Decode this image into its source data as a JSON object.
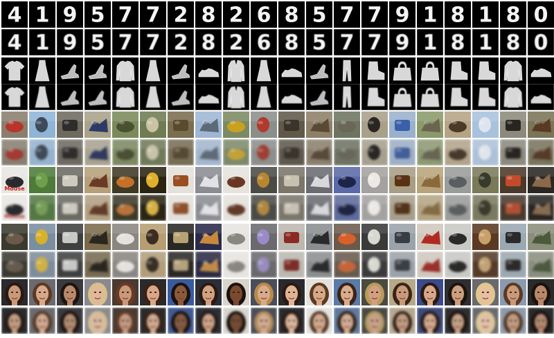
{
  "figure": {
    "title": "",
    "background_color": "#ffffff",
    "columns": 20,
    "row_kinds": [
      "original",
      "reconstruction"
    ],
    "panels": [
      {
        "name": "mnist",
        "background_color": "#000000",
        "items": [
          {
            "label": "4"
          },
          {
            "label": "1"
          },
          {
            "label": "9"
          },
          {
            "label": "5"
          },
          {
            "label": "7"
          },
          {
            "label": "7"
          },
          {
            "label": "2"
          },
          {
            "label": "8"
          },
          {
            "label": "2"
          },
          {
            "label": "6"
          },
          {
            "label": "8"
          },
          {
            "label": "5"
          },
          {
            "label": "7"
          },
          {
            "label": "7"
          },
          {
            "label": "9"
          },
          {
            "label": "1"
          },
          {
            "label": "8"
          },
          {
            "label": "1"
          },
          {
            "label": "8"
          },
          {
            "label": "0"
          }
        ]
      },
      {
        "name": "fashion-mnist",
        "background_color": "#000000",
        "items": [
          {
            "icon": "tshirt-icon"
          },
          {
            "icon": "dress-icon"
          },
          {
            "icon": "sandal-icon"
          },
          {
            "icon": "sandal-icon"
          },
          {
            "icon": "pullover-icon"
          },
          {
            "icon": "dress-icon"
          },
          {
            "icon": "sandal-icon"
          },
          {
            "icon": "sneaker-icon"
          },
          {
            "icon": "coat-icon"
          },
          {
            "icon": "dress-icon"
          },
          {
            "icon": "sneaker-icon"
          },
          {
            "icon": "sandal-icon"
          },
          {
            "icon": "trouser-icon"
          },
          {
            "icon": "ankle-boot-icon"
          },
          {
            "icon": "bag-icon"
          },
          {
            "icon": "bag-icon"
          },
          {
            "icon": "ankle-boot-icon"
          },
          {
            "icon": "ankle-boot-icon"
          },
          {
            "icon": "pullover-icon"
          },
          {
            "icon": "sneaker-icon"
          }
        ]
      },
      {
        "name": "cifar-10",
        "items": [
          {
            "bg": "#8a7f6e",
            "obj": "#b8352c"
          },
          {
            "bg": "#8fb4d6",
            "obj": "#3c4a5a"
          },
          {
            "bg": "#6f6a60",
            "obj": "#2f2d2b"
          },
          {
            "bg": "#a9a28a",
            "obj": "#2e3a66"
          },
          {
            "bg": "#7c8a5a",
            "obj": "#4a5030"
          },
          {
            "bg": "#6f7b52",
            "obj": "#c9c2a4"
          },
          {
            "bg": "#7a6e4f",
            "obj": "#5a4a2e"
          },
          {
            "bg": "#9fb7d4",
            "obj": "#5c6a78"
          },
          {
            "bg": "#7b8a64",
            "obj": "#c9a11e"
          },
          {
            "bg": "#8b8f8a",
            "obj": "#b03a2e"
          },
          {
            "bg": "#60594a",
            "obj": "#3a342a"
          },
          {
            "bg": "#8e8068",
            "obj": "#5a4a34"
          },
          {
            "bg": "#6d7560",
            "obj": "#6a6658"
          },
          {
            "bg": "#a9a08a",
            "obj": "#2a2622"
          },
          {
            "bg": "#9ab1cc",
            "obj": "#3b5fa8"
          },
          {
            "bg": "#8a9a6a",
            "obj": "#6a6450"
          },
          {
            "bg": "#b5a484",
            "obj": "#4a3a28"
          },
          {
            "bg": "#a8c2de",
            "obj": "#dfe5ee"
          },
          {
            "bg": "#8c8a7c",
            "obj": "#2a2420"
          },
          {
            "bg": "#7a7458",
            "obj": "#5a3a22"
          }
        ]
      },
      {
        "name": "tiny-imagenet-a",
        "items": [
          {
            "bg": "#e8e6e2",
            "obj": "#2a2a2e",
            "caption": "Mouse"
          },
          {
            "bg": "#4e7a3a",
            "obj": "#6ea04a"
          },
          {
            "bg": "#6a6a62",
            "obj": "#cfcac0"
          },
          {
            "bg": "#b6a07a",
            "obj": "#6a3a24"
          },
          {
            "bg": "#3e3a24",
            "obj": "#c4702a"
          },
          {
            "bg": "#2a2410",
            "obj": "#e0b02a"
          },
          {
            "bg": "#e4e0da",
            "obj": "#9a4e22"
          },
          {
            "bg": "#8a8c92",
            "obj": "#e2e2e4"
          },
          {
            "bg": "#e6e2dc",
            "obj": "#6a3822"
          },
          {
            "bg": "#4a4a46",
            "obj": "#b8862e"
          },
          {
            "bg": "#7c766a",
            "obj": "#c8c0b0"
          },
          {
            "bg": "#6a6c72",
            "obj": "#d8d8dc"
          },
          {
            "bg": "#5a6aa8",
            "obj": "#1e2448"
          },
          {
            "bg": "#a4a2a0",
            "obj": "#ece8e4"
          },
          {
            "bg": "#a89e86",
            "obj": "#5a3212"
          },
          {
            "bg": "#b8a47a",
            "obj": "#8a6a3a"
          },
          {
            "bg": "#9a9c9a",
            "obj": "#5a5e60"
          },
          {
            "bg": "#7a7a5a",
            "obj": "#3a3a2a"
          },
          {
            "bg": "#4a3a2a",
            "obj": "#c44a2a"
          },
          {
            "bg": "#2a2622",
            "obj": "#8a6a4a"
          }
        ]
      },
      {
        "name": "tiny-imagenet-b",
        "items": [
          {
            "bg": "#3a3a2e",
            "obj": "#6a5a4a"
          },
          {
            "bg": "#7a8ea0",
            "obj": "#d8b02a"
          },
          {
            "bg": "#3e4040",
            "obj": "#c8c8c4"
          },
          {
            "bg": "#7a6a4a",
            "obj": "#2a2620"
          },
          {
            "bg": "#8a8680",
            "obj": "#e4e2de"
          },
          {
            "bg": "#b69e72",
            "obj": "#3a2e22"
          },
          {
            "bg": "#2a2824",
            "obj": "#b8a272"
          },
          {
            "bg": "#2a2a4a",
            "obj": "#c88a3a"
          },
          {
            "bg": "#e6e4e0",
            "obj": "#8a8680"
          },
          {
            "bg": "#6a6a6e",
            "obj": "#9a8ac8"
          },
          {
            "bg": "#bcb8b0",
            "obj": "#8a2a22"
          },
          {
            "bg": "#8a8e90",
            "obj": "#2a2a2a"
          },
          {
            "bg": "#6a5a4a",
            "obj": "#d8602a"
          },
          {
            "bg": "#3a3a3a",
            "obj": "#d8d8d0"
          },
          {
            "bg": "#9aa2aa",
            "obj": "#3a3e44"
          },
          {
            "bg": "#d0c8bc",
            "obj": "#b02a22"
          },
          {
            "bg": "#c8c8c4",
            "obj": "#2a2a2a"
          },
          {
            "bg": "#5a3a22",
            "obj": "#c8a06a"
          },
          {
            "bg": "#9aa8b2",
            "obj": "#2a2a2a"
          },
          {
            "bg": "#8a8e7a",
            "obj": "#4a5a3a"
          }
        ]
      },
      {
        "name": "celeba",
        "items": [
          {
            "bg": "#2a2a2e",
            "obj": "#c89a7a",
            "hair": "#2a1a12"
          },
          {
            "bg": "#6a6a70",
            "obj": "#d8a88a",
            "hair": "#5a3a22"
          },
          {
            "bg": "#3a3a3e",
            "obj": "#b88a6a",
            "hair": "#1e1410"
          },
          {
            "bg": "#8a8a8e",
            "obj": "#e0b89a",
            "hair": "#d8c08a"
          },
          {
            "bg": "#4a3a32",
            "obj": "#c8987a",
            "hair": "#6a3a22"
          },
          {
            "bg": "#2a2a2a",
            "obj": "#d8a888",
            "hair": "#3a2218"
          },
          {
            "bg": "#3a5aa0",
            "obj": "#8a5a3a",
            "hair": "#1a1210"
          },
          {
            "bg": "#2a2e3a",
            "obj": "#d2a282",
            "hair": "#2a1a12"
          },
          {
            "bg": "#d8d4cc",
            "obj": "#7a4a2e",
            "hair": "#1a120e"
          },
          {
            "bg": "#4a4e5a",
            "obj": "#d8aa8a",
            "hair": "#b88a4a"
          },
          {
            "bg": "#2a2a2e",
            "obj": "#e0b494",
            "hair": "#2a1a12"
          },
          {
            "bg": "#e4e2de",
            "obj": "#d8a888",
            "hair": "#5a3a22"
          },
          {
            "bg": "#5a7aa8",
            "obj": "#d8ac8c",
            "hair": "#3a2418"
          },
          {
            "bg": "#4a4a3e",
            "obj": "#d0a080",
            "hair": "#b89a5a"
          },
          {
            "bg": "#b8a888",
            "obj": "#c89a7a",
            "hair": "#3a2418"
          },
          {
            "bg": "#3a4a8a",
            "obj": "#d8a888",
            "hair": "#2a1a12"
          },
          {
            "bg": "#2e2e32",
            "obj": "#caa07e",
            "hair": "#1e140e"
          },
          {
            "bg": "#6a6a6e",
            "obj": "#e8c0a0",
            "hair": "#e0c88a"
          },
          {
            "bg": "#8a9ab0",
            "obj": "#c89a7a",
            "hair": "#5a3a22"
          },
          {
            "bg": "#2a2a2a",
            "obj": "#b8886a",
            "hair": "#1a120e"
          }
        ]
      }
    ]
  }
}
